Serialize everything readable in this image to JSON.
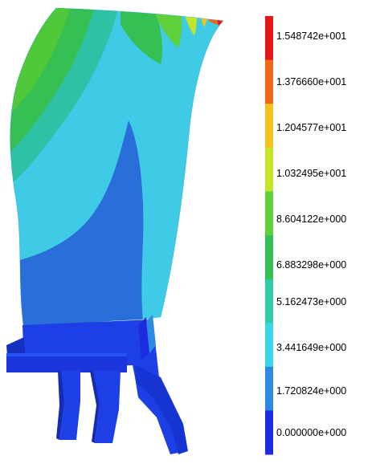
{
  "colorbar": {
    "labels": [
      "1.548742e+001",
      "1.376660e+001",
      "1.204577e+001",
      "1.032495e+001",
      "8.604122e+000",
      "6.883298e+000",
      "5.162473e+000",
      "3.441649e+000",
      "1.720824e+000",
      "0.000000e+000"
    ],
    "colors": [
      "#e3161a",
      "#f2661c",
      "#f4c21c",
      "#c3e52a",
      "#5fd03a",
      "#36bf52",
      "#36c9a8",
      "#3ad6e6",
      "#2d8ae0",
      "#1d2be0"
    ]
  },
  "palette": {
    "blade_teal": "#3fcbe6",
    "blade_blue": "#2a6fd9",
    "root_blue": "#1c3fe6",
    "green": "#4fc83a",
    "yellow_green": "#b9e02c"
  }
}
